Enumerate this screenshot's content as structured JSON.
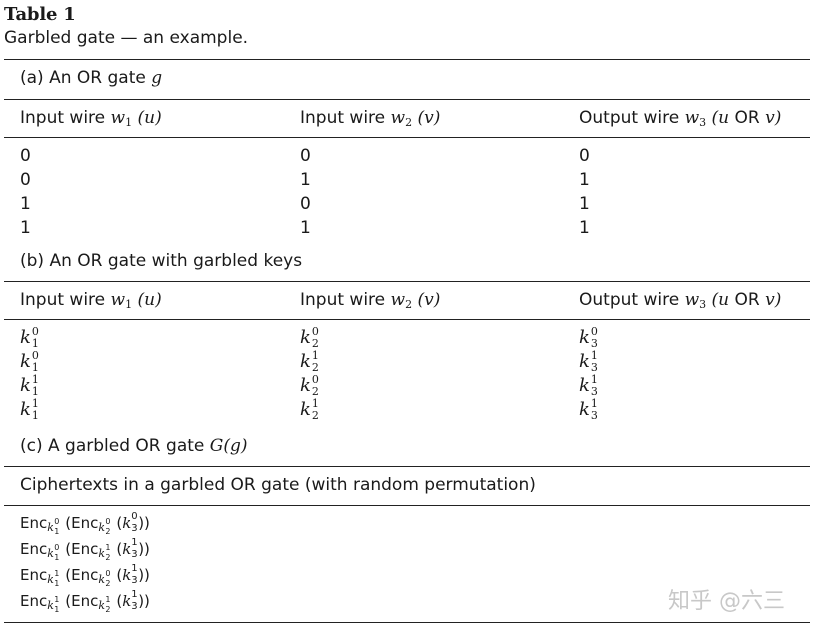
{
  "table_label": "Table 1",
  "table_caption": "Garbled gate — an example.",
  "section_a": {
    "title_prefix": "(a) An",
    "title_or": "OR",
    "title_suffix": "gate",
    "title_var": "g",
    "headers": [
      {
        "pre": "Input wire",
        "var": "w",
        "sub": "1",
        "arg": "(u)"
      },
      {
        "pre": "Input wire",
        "var": "w",
        "sub": "2",
        "arg": "(v)"
      },
      {
        "pre": "Output wire",
        "var": "w",
        "sub": "3",
        "arg_open": "(u",
        "or": "OR",
        "arg_close": "v)"
      }
    ],
    "rows": [
      [
        "0",
        "0",
        "0"
      ],
      [
        "0",
        "1",
        "1"
      ],
      [
        "1",
        "0",
        "1"
      ],
      [
        "1",
        "1",
        "1"
      ]
    ]
  },
  "section_b": {
    "title_prefix": "(b) An",
    "title_or": "OR",
    "title_suffix": "gate with garbled keys",
    "headers": [
      {
        "pre": "Input wire",
        "var": "w",
        "sub": "1",
        "arg": "(u)"
      },
      {
        "pre": "Input wire",
        "var": "w",
        "sub": "2",
        "arg": "(v)"
      },
      {
        "pre": "Output wire",
        "var": "w",
        "sub": "3",
        "arg_open": "(u",
        "or": "OR",
        "arg_close": "v)"
      }
    ],
    "keys": [
      [
        {
          "base": "k",
          "sub": "1",
          "sup": "0"
        },
        {
          "base": "k",
          "sub": "2",
          "sup": "0"
        },
        {
          "base": "k",
          "sub": "3",
          "sup": "0"
        }
      ],
      [
        {
          "base": "k",
          "sub": "1",
          "sup": "0"
        },
        {
          "base": "k",
          "sub": "2",
          "sup": "1"
        },
        {
          "base": "k",
          "sub": "3",
          "sup": "1"
        }
      ],
      [
        {
          "base": "k",
          "sub": "1",
          "sup": "1"
        },
        {
          "base": "k",
          "sub": "2",
          "sup": "0"
        },
        {
          "base": "k",
          "sub": "3",
          "sup": "1"
        }
      ],
      [
        {
          "base": "k",
          "sub": "1",
          "sup": "1"
        },
        {
          "base": "k",
          "sub": "2",
          "sup": "1"
        },
        {
          "base": "k",
          "sub": "3",
          "sup": "1"
        }
      ]
    ]
  },
  "section_c": {
    "title_prefix": "(c) A garbled",
    "title_or": "OR",
    "title_suffix": "gate",
    "title_var": "G(g)",
    "header_prefix": "Ciphertexts in a garbled",
    "header_or": "OR",
    "header_suffix": "gate (with random permutation)",
    "ciphertexts": [
      {
        "enc": "Enc",
        "k1": "0",
        "k2": "0",
        "k3": "0"
      },
      {
        "enc": "Enc",
        "k1": "0",
        "k2": "1",
        "k3": "1"
      },
      {
        "enc": "Enc",
        "k1": "1",
        "k2": "0",
        "k3": "1"
      },
      {
        "enc": "Enc",
        "k1": "1",
        "k2": "1",
        "k3": "1"
      }
    ]
  },
  "watermark": "知乎 @六三"
}
